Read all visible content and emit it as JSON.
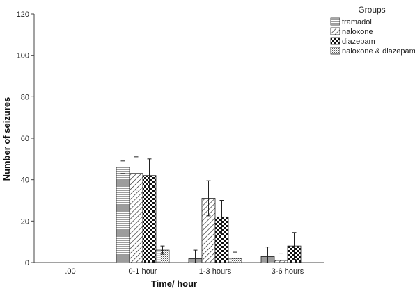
{
  "chart_data": {
    "type": "bar",
    "xlabel": "Time/ hour",
    "ylabel": "Number of seizures",
    "ylim": [
      0,
      120
    ],
    "yticks": [
      0,
      20,
      40,
      60,
      80,
      100,
      120
    ],
    "categories": [
      ".00",
      "0-1 hour",
      "1-3 hours",
      "3-6 hours"
    ],
    "legend_title": "Groups",
    "legend_position": "top-right",
    "grid": false,
    "series": [
      {
        "name": "tramadol",
        "pattern": "horizontal-lines",
        "values": [
          0,
          46,
          2,
          3
        ],
        "errors": [
          0,
          3,
          4,
          4.5
        ]
      },
      {
        "name": "naloxone",
        "pattern": "diagonal-lines",
        "values": [
          0,
          43,
          31,
          1
        ],
        "errors": [
          0,
          8,
          8.5,
          3.5
        ]
      },
      {
        "name": "diazepam",
        "pattern": "checkerboard",
        "values": [
          0,
          42,
          22,
          8
        ],
        "errors": [
          0,
          8,
          8,
          6.5
        ]
      },
      {
        "name": "naloxone & diazepam",
        "pattern": "dots",
        "values": [
          0,
          6,
          2,
          0
        ],
        "errors": [
          0,
          2,
          3,
          0
        ]
      }
    ]
  }
}
